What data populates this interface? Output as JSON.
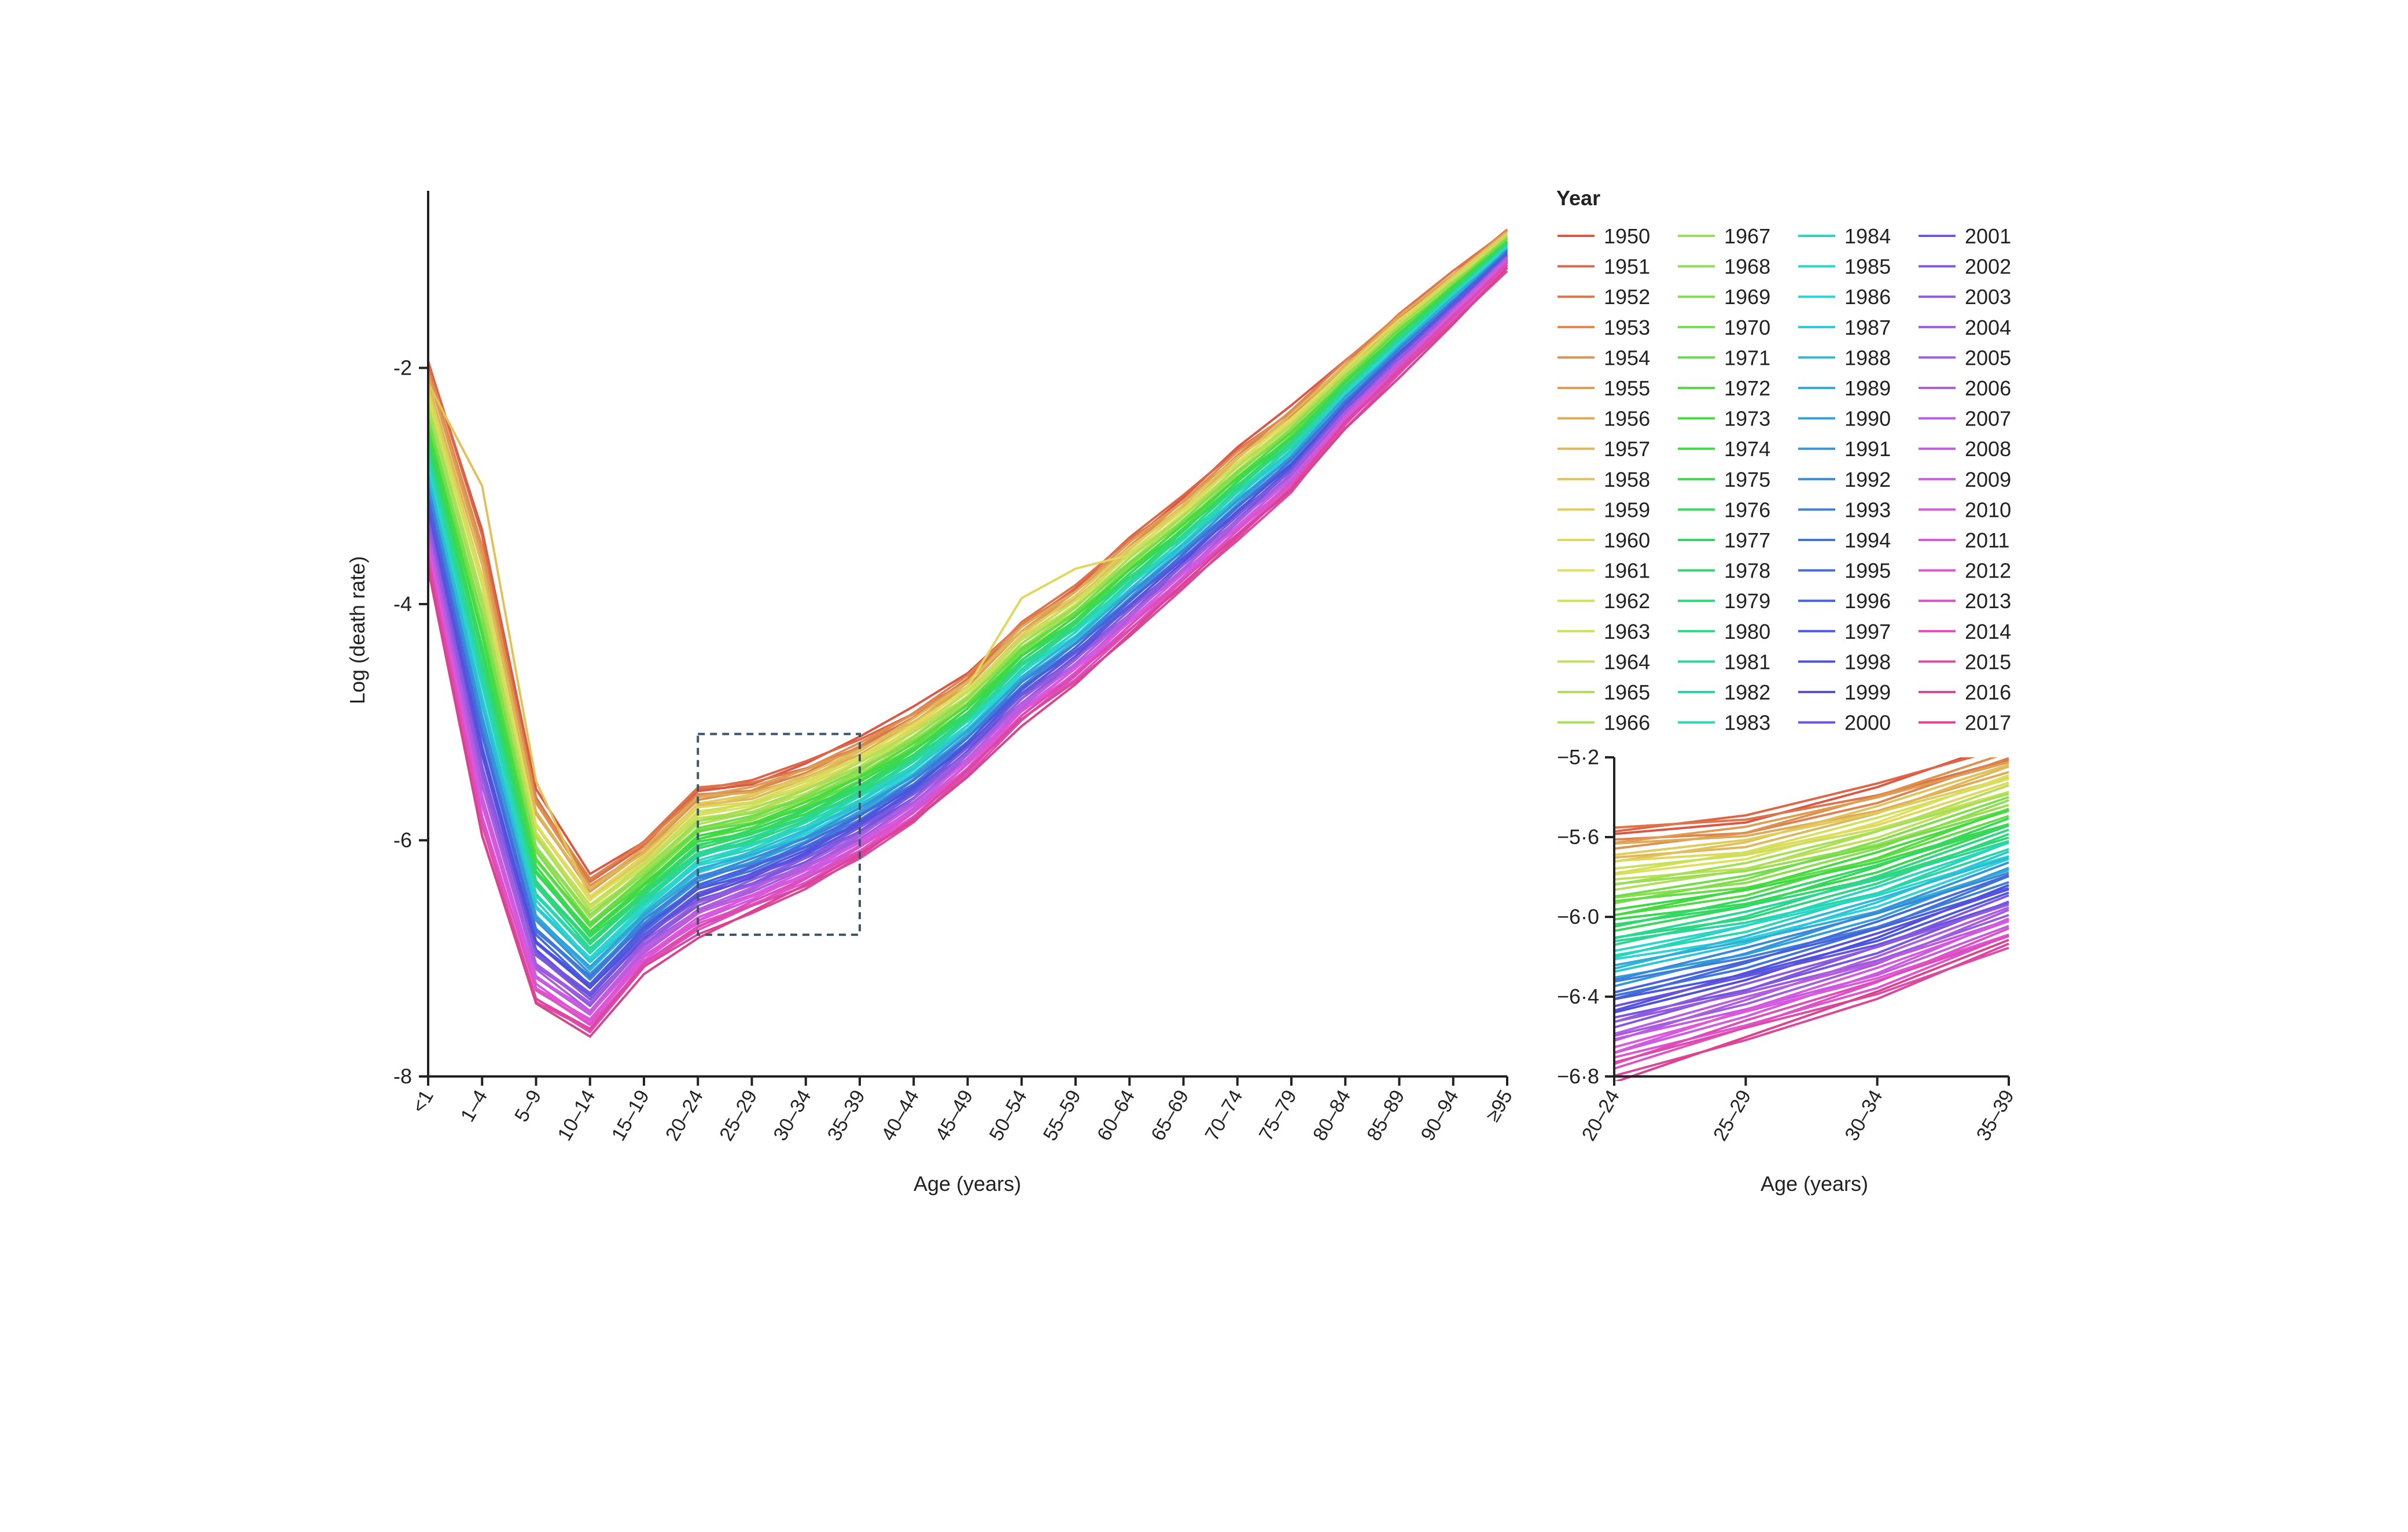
{
  "chart_data": [
    {
      "id": "main",
      "type": "line",
      "title": "",
      "xlabel": "Age (years)",
      "ylabel": "Log (death rate)",
      "categories": [
        "<1",
        "1–4",
        "5–9",
        "10–14",
        "15–19",
        "20–24",
        "25–29",
        "30–34",
        "35–39",
        "40–44",
        "45–49",
        "50–54",
        "55–59",
        "60–64",
        "65–69",
        "70–74",
        "75–79",
        "80–84",
        "85–89",
        "90–94",
        "≥95"
      ],
      "yticks": [
        -2,
        -4,
        -6,
        -8
      ],
      "ytick_labels": [
        "-2",
        "-4",
        "-6",
        "-8"
      ],
      "ylim": [
        -8,
        -0.5
      ],
      "grid": false,
      "profile_1950": [
        -1.95,
        -3.4,
        -5.6,
        -6.3,
        -6.0,
        -5.55,
        -5.5,
        -5.35,
        -5.15,
        -4.9,
        -4.6,
        -4.15,
        -3.85,
        -3.45,
        -3.1,
        -2.7,
        -2.35,
        -1.95,
        -1.55,
        -1.2,
        -0.85
      ],
      "profile_2017": [
        -3.7,
        -6.0,
        -7.4,
        -7.65,
        -7.1,
        -6.8,
        -6.6,
        -6.4,
        -6.15,
        -5.85,
        -5.45,
        -5.0,
        -4.65,
        -4.25,
        -3.85,
        -3.45,
        -3.05,
        -2.5,
        -2.05,
        -1.6,
        -1.15
      ],
      "anomalies": [
        {
          "year": 1958,
          "category_index": 1,
          "value": -3.0
        },
        {
          "year": 1958,
          "category_index": 2,
          "value": -5.5
        },
        {
          "year": 1960,
          "category_index": 11,
          "value": -3.95
        },
        {
          "year": 1960,
          "category_index": 12,
          "value": -3.7
        }
      ]
    },
    {
      "id": "inset",
      "type": "line",
      "title": "",
      "xlabel": "Age (years)",
      "ylabel": "",
      "categories": [
        "20–24",
        "25–29",
        "30–34",
        "35–39"
      ],
      "yticks": [
        -5.2,
        -5.6,
        -6.0,
        -6.4,
        -6.8
      ],
      "ytick_labels": [
        "−5·2",
        "−5·6",
        "−6·0",
        "−6·4",
        "−6·8"
      ],
      "ylim": [
        -6.8,
        -5.2
      ],
      "grid": false
    }
  ],
  "legend": {
    "title": "Year",
    "years": [
      "1950",
      "1951",
      "1952",
      "1953",
      "1954",
      "1955",
      "1956",
      "1957",
      "1958",
      "1959",
      "1960",
      "1961",
      "1962",
      "1963",
      "1964",
      "1965",
      "1966",
      "1967",
      "1968",
      "1969",
      "1970",
      "1971",
      "1972",
      "1973",
      "1974",
      "1975",
      "1976",
      "1977",
      "1978",
      "1979",
      "1980",
      "1981",
      "1982",
      "1983",
      "1984",
      "1985",
      "1986",
      "1987",
      "1988",
      "1989",
      "1990",
      "1991",
      "1992",
      "1993",
      "1994",
      "1995",
      "1996",
      "1997",
      "1998",
      "1999",
      "2000",
      "2001",
      "2002",
      "2003",
      "2004",
      "2005",
      "2006",
      "2007",
      "2008",
      "2009",
      "2010",
      "2011",
      "2012",
      "2013",
      "2014",
      "2015",
      "2016",
      "2017"
    ],
    "placement": "top-right",
    "color_scale": "hue rainbow from red-orange (1950) through olive, green, teal, cyan, blue, purple to pink (2017)"
  },
  "zoom_box_color": "#3d5566"
}
